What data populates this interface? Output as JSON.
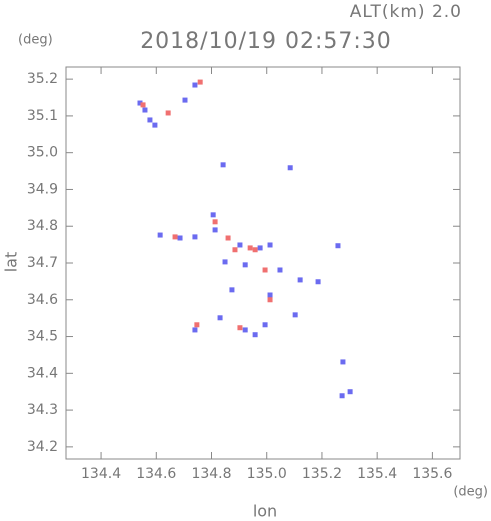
{
  "chart_data": {
    "type": "scatter",
    "title": "2018/10/19 02:57:30",
    "subtitle": "ALT(km) 2.0",
    "x_label": "lon",
    "x_unit": "(deg)",
    "y_label": "lat",
    "y_unit": "(deg)",
    "xlim": [
      134.273,
      135.7
    ],
    "ylim": [
      34.167,
      35.233
    ],
    "xticks": [
      134.4,
      134.6,
      134.8,
      {
        "value": 135,
        "label": "135.0"
      },
      135.2,
      135.4,
      135.6
    ],
    "yticks": [
      34.2,
      34.3,
      34.4,
      34.5,
      34.6,
      34.7,
      34.8,
      34.9,
      {
        "value": 35,
        "label": "35.0"
      },
      35.1,
      35.2
    ],
    "series": [
      {
        "color": "#6b6bf0",
        "x": [
          134.577,
          134.559,
          134.541,
          134.595,
          134.704,
          134.74,
          135.085,
          134.842,
          134.806,
          134.813,
          134.614,
          134.686,
          134.74,
          134.903,
          134.976,
          135.012,
          134.849,
          134.922,
          135.048,
          135.121,
          135.186,
          135.258,
          134.874,
          135.012,
          135.103,
          134.922,
          134.958,
          134.994,
          134.74,
          134.831,
          135.302,
          135.273,
          135.276
        ],
        "y": [
          35.089,
          35.116,
          35.135,
          35.075,
          35.143,
          35.184,
          34.959,
          34.967,
          34.831,
          34.79,
          34.776,
          34.768,
          34.771,
          34.749,
          34.741,
          34.749,
          34.703,
          34.695,
          34.681,
          34.654,
          34.649,
          34.747,
          34.627,
          34.613,
          34.559,
          34.518,
          34.505,
          34.532,
          34.518,
          34.551,
          34.35,
          34.339,
          34.431
        ]
      },
      {
        "color": "#f07070",
        "x": [
          134.552,
          134.643,
          134.759,
          134.813,
          134.86,
          134.885,
          134.668,
          134.94,
          134.994,
          135.012,
          134.903,
          134.747,
          134.958
        ],
        "y": [
          35.13,
          35.108,
          35.192,
          34.812,
          34.768,
          34.736,
          34.771,
          34.741,
          34.681,
          34.6,
          34.524,
          34.532,
          34.736
        ]
      }
    ]
  }
}
